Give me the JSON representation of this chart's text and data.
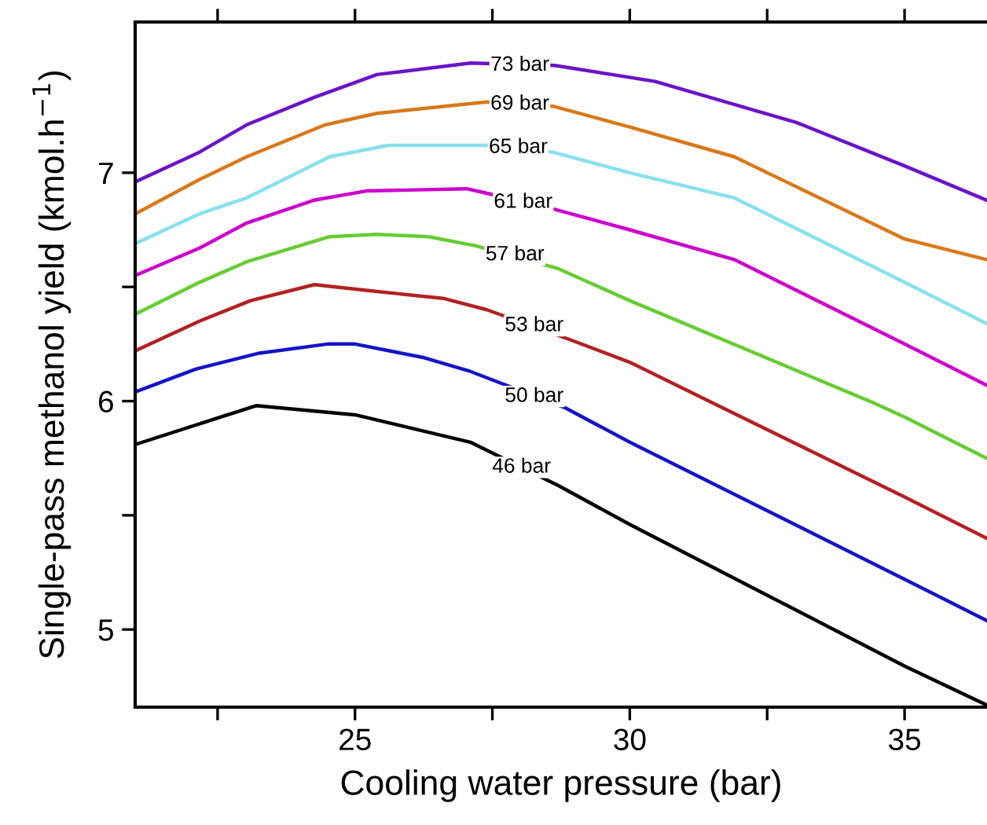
{
  "chart_data": {
    "type": "line",
    "xlabel": "Cooling water pressure (bar)",
    "ylabel": "Single-pass methanol yield (kmol.h$^{−1}$)",
    "xlim": [
      21,
      36.5
    ],
    "ylim": [
      4.66,
      7.66
    ],
    "xticks": [
      {
        "value": 22.5,
        "label": null
      },
      25,
      {
        "value": 27.5,
        "label": null
      },
      30,
      {
        "value": 32.5,
        "label": null
      },
      35
    ],
    "yticks": [
      5,
      {
        "value": 5.5,
        "label": null
      },
      6,
      {
        "value": 6.5,
        "label": null
      },
      7
    ],
    "grid": false,
    "legend": false,
    "marker": "none",
    "line_style": "solid",
    "series": [
      {
        "color": "#000000",
        "x": [
          21.0,
          23.2,
          25.0,
          27.1,
          28.7,
          30.0,
          35.0,
          36.49
        ],
        "values": [
          5.81,
          5.98,
          5.94,
          5.82,
          5.63,
          5.46,
          4.84,
          4.67
        ]
      },
      {
        "color": "#1414c8",
        "x": [
          21.0,
          22.1,
          23.26,
          24.5,
          25.0,
          26.26,
          27.1,
          28.83,
          30.0,
          35.0,
          36.49
        ],
        "values": [
          6.04,
          6.14,
          6.21,
          6.25,
          6.25,
          6.19,
          6.13,
          5.97,
          5.82,
          5.22,
          5.04
        ]
      },
      {
        "color": "#b22222",
        "x": [
          21.0,
          22.17,
          23.1,
          24.26,
          25.4,
          26.6,
          27.4,
          28.9,
          30.0,
          35.0,
          36.49
        ],
        "values": [
          6.22,
          6.35,
          6.44,
          6.51,
          6.48,
          6.45,
          6.4,
          6.27,
          6.17,
          5.58,
          5.4
        ]
      },
      {
        "color": "#66cc33",
        "x": [
          21.0,
          22.17,
          23.03,
          24.54,
          25.4,
          26.34,
          27.2,
          28.7,
          30.0,
          34.46,
          35.0,
          36.49
        ],
        "values": [
          6.38,
          6.52,
          6.61,
          6.72,
          6.73,
          6.72,
          6.68,
          6.58,
          6.44,
          5.99,
          5.93,
          5.75
        ]
      },
      {
        "color": "#cc00cc",
        "x": [
          21.0,
          22.17,
          23.03,
          24.26,
          25.2,
          27.03,
          27.4,
          28.63,
          30.0,
          31.9,
          35.0,
          36.49
        ],
        "values": [
          6.55,
          6.67,
          6.78,
          6.88,
          6.92,
          6.93,
          6.91,
          6.84,
          6.75,
          6.62,
          6.25,
          6.07
        ]
      },
      {
        "color": "#88e0ee",
        "x": [
          21.0,
          22.17,
          23.03,
          24.54,
          25.6,
          27.4,
          28.6,
          30.0,
          31.9,
          35.0,
          36.49
        ],
        "values": [
          6.69,
          6.82,
          6.89,
          7.07,
          7.12,
          7.12,
          7.09,
          7.0,
          6.89,
          6.52,
          6.34
        ]
      },
      {
        "color": "#d9781a",
        "x": [
          21.0,
          22.17,
          23.03,
          24.46,
          25.4,
          27.4,
          28.63,
          30.0,
          31.9,
          35.0,
          36.49
        ],
        "values": [
          6.82,
          6.97,
          7.07,
          7.21,
          7.26,
          7.31,
          7.29,
          7.2,
          7.07,
          6.71,
          6.62
        ]
      },
      {
        "color": "#6a14c8",
        "x": [
          21.0,
          22.17,
          23.03,
          24.26,
          25.4,
          27.1,
          28.63,
          30.46,
          33.03,
          35.0,
          36.49
        ],
        "values": [
          6.96,
          7.09,
          7.21,
          7.33,
          7.43,
          7.48,
          7.47,
          7.4,
          7.22,
          7.03,
          6.88
        ]
      }
    ],
    "annotations": [
      {
        "text": "46 bar",
        "x": 28.03,
        "y": 5.71
      },
      {
        "text": "50 bar",
        "x": 28.26,
        "y": 6.02
      },
      {
        "text": "53 bar",
        "x": 28.26,
        "y": 6.33
      },
      {
        "text": "57 bar",
        "x": 27.91,
        "y": 6.64
      },
      {
        "text": "61 bar",
        "x": 28.06,
        "y": 6.87
      },
      {
        "text": "65 bar",
        "x": 27.97,
        "y": 7.11
      },
      {
        "text": "69 bar",
        "x": 28.0,
        "y": 7.3
      },
      {
        "text": "73 bar",
        "x": 28.0,
        "y": 7.47
      }
    ]
  }
}
